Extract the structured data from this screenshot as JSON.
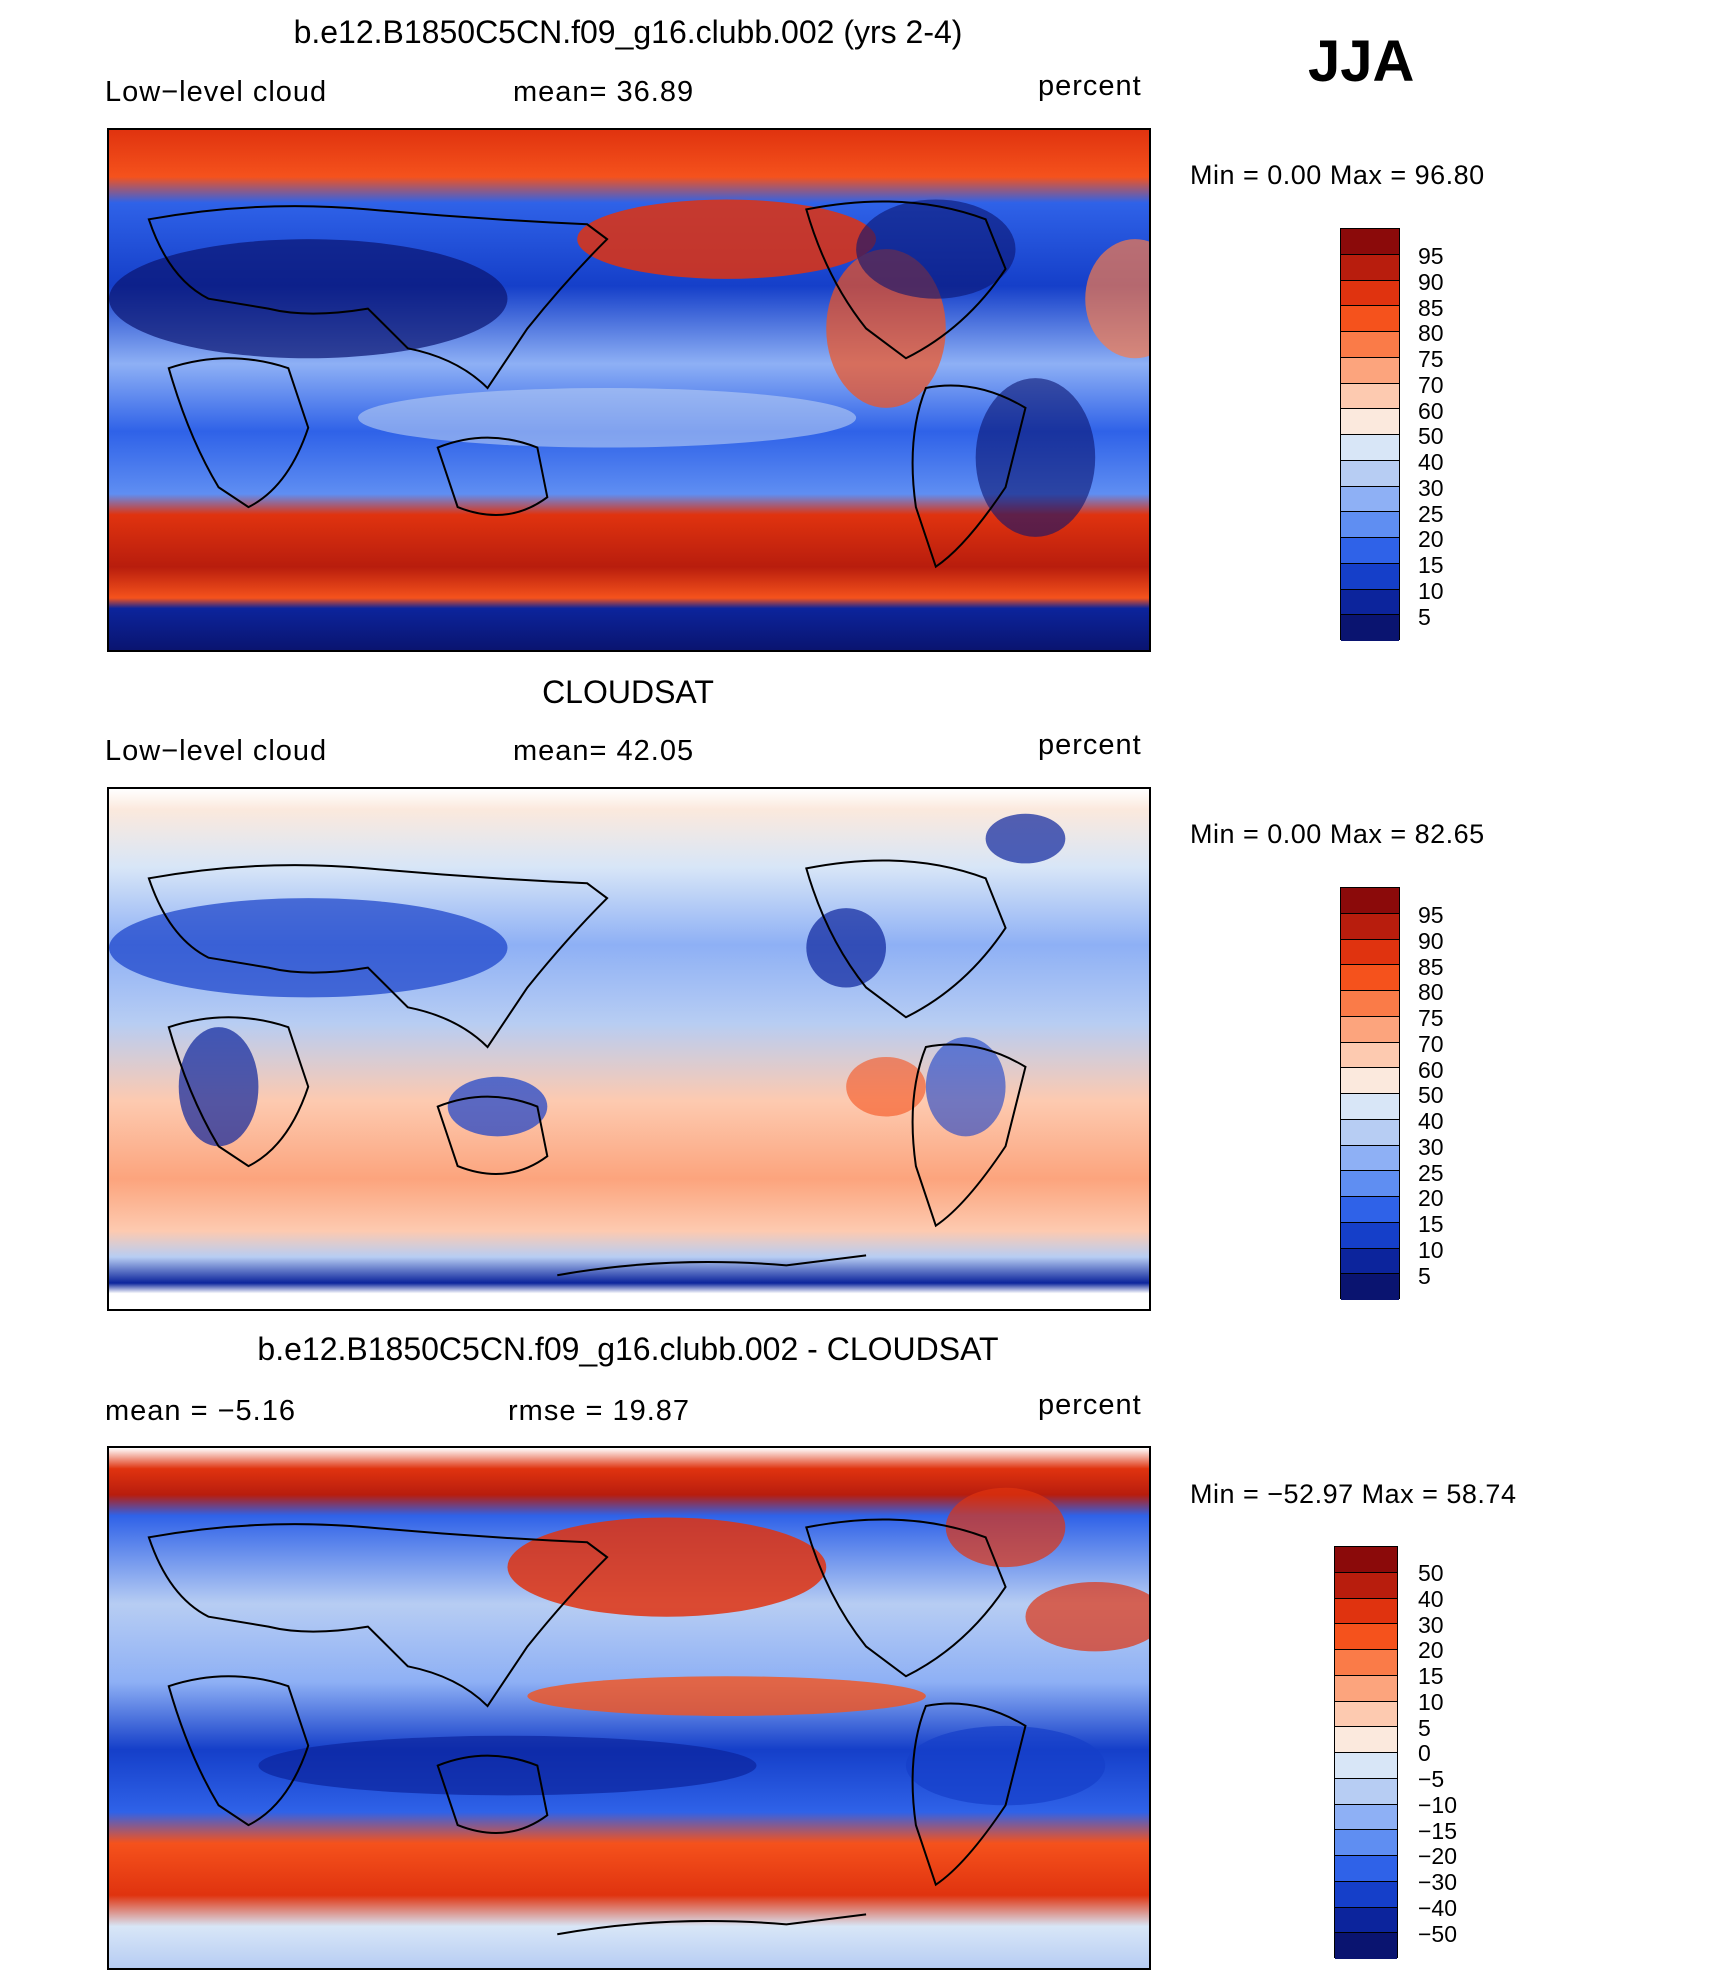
{
  "season": "JJA",
  "panels": [
    {
      "title": "b.e12.B1850C5CN.f09_g16.clubb.002 (yrs 2-4)",
      "left_label": "Low−level cloud",
      "mid_label": "mean=   36.89",
      "units": "percent",
      "minmax": "Min =    0.00  Max =   96.80",
      "colorbar_ticks": [
        "95",
        "90",
        "85",
        "80",
        "75",
        "70",
        "60",
        "50",
        "40",
        "30",
        "25",
        "20",
        "15",
        "10",
        "5"
      ]
    },
    {
      "title": "CLOUDSAT",
      "left_label": "Low−level cloud",
      "mid_label": "mean=   42.05",
      "units": "percent",
      "minmax": "Min =    0.00  Max =   82.65",
      "colorbar_ticks": [
        "95",
        "90",
        "85",
        "80",
        "75",
        "70",
        "60",
        "50",
        "40",
        "30",
        "25",
        "20",
        "15",
        "10",
        "5"
      ]
    },
    {
      "title": "b.e12.B1850C5CN.f09_g16.clubb.002 - CLOUDSAT",
      "left_label": "mean =   −5.16",
      "mid_label": "rmse =   19.87",
      "units": "percent",
      "minmax": "Min = −52.97  Max =   58.74",
      "colorbar_ticks": [
        "50",
        "40",
        "30",
        "20",
        "15",
        "10",
        "5",
        "0",
        "−5",
        "−10",
        "−15",
        "−20",
        "−30",
        "−40",
        "−50"
      ]
    }
  ],
  "colorbar_colors": [
    "#8b0a0a",
    "#b81d0d",
    "#e0330f",
    "#f5521c",
    "#fa7b48",
    "#fca47d",
    "#fdcab0",
    "#fbe9dd",
    "#d8e6f7",
    "#b7cdf3",
    "#8eb0f5",
    "#5f8ef2",
    "#2f62e8",
    "#153fc9",
    "#0c249c",
    "#0a1470"
  ]
}
